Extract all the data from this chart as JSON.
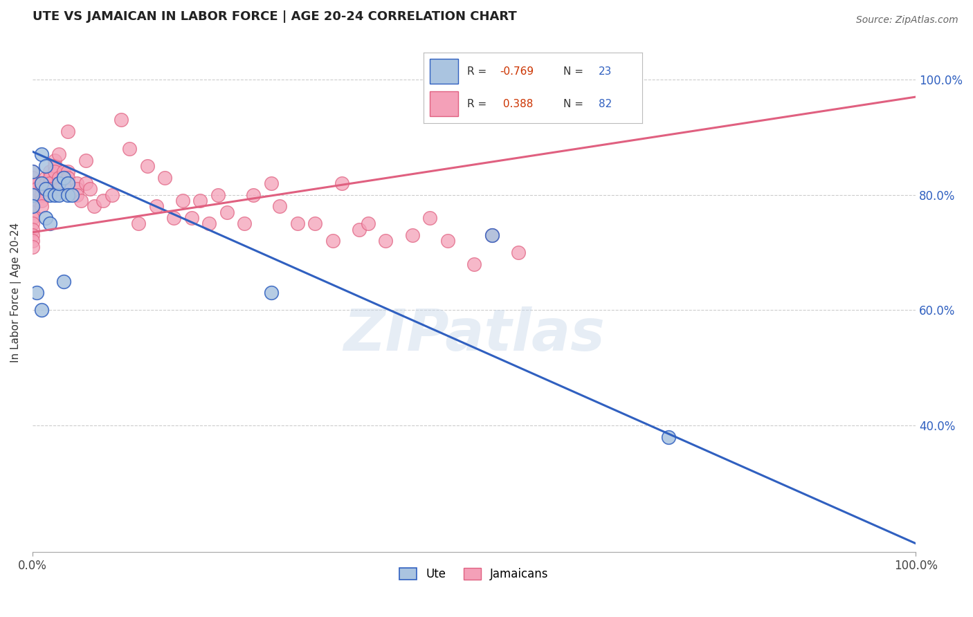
{
  "title": "UTE VS JAMAICAN IN LABOR FORCE | AGE 20-24 CORRELATION CHART",
  "source_text": "Source: ZipAtlas.com",
  "ylabel": "In Labor Force | Age 20-24",
  "xlim": [
    0.0,
    1.0
  ],
  "ylim": [
    0.18,
    1.08
  ],
  "legend_R_ute": "-0.769",
  "legend_N_ute": "23",
  "legend_R_jam": "0.388",
  "legend_N_jam": "82",
  "ute_color": "#aac4e0",
  "jam_color": "#f4a0b8",
  "ute_line_color": "#3060c0",
  "jam_line_color": "#e06080",
  "watermark": "ZIPatlas",
  "ute_x": [
    0.01,
    0.015,
    0.0,
    0.0,
    0.0,
    0.01,
    0.015,
    0.02,
    0.025,
    0.03,
    0.03,
    0.035,
    0.04,
    0.04,
    0.045,
    0.005,
    0.01,
    0.015,
    0.02,
    0.035,
    0.27,
    0.52,
    0.72
  ],
  "ute_y": [
    0.87,
    0.85,
    0.84,
    0.8,
    0.78,
    0.82,
    0.81,
    0.8,
    0.8,
    0.8,
    0.82,
    0.83,
    0.82,
    0.8,
    0.8,
    0.63,
    0.6,
    0.76,
    0.75,
    0.65,
    0.63,
    0.73,
    0.38
  ],
  "jam_x": [
    0.0,
    0.0,
    0.0,
    0.0,
    0.0,
    0.0,
    0.0,
    0.0,
    0.0,
    0.0,
    0.0,
    0.0,
    0.0,
    0.0,
    0.005,
    0.005,
    0.005,
    0.01,
    0.01,
    0.01,
    0.01,
    0.01,
    0.015,
    0.015,
    0.015,
    0.02,
    0.02,
    0.02,
    0.02,
    0.025,
    0.025,
    0.025,
    0.03,
    0.03,
    0.03,
    0.03,
    0.035,
    0.035,
    0.04,
    0.04,
    0.04,
    0.04,
    0.05,
    0.05,
    0.05,
    0.055,
    0.06,
    0.06,
    0.065,
    0.07,
    0.08,
    0.09,
    0.1,
    0.11,
    0.12,
    0.13,
    0.14,
    0.15,
    0.16,
    0.17,
    0.18,
    0.19,
    0.2,
    0.21,
    0.22,
    0.24,
    0.25,
    0.27,
    0.28,
    0.3,
    0.32,
    0.34,
    0.35,
    0.37,
    0.38,
    0.4,
    0.43,
    0.45,
    0.47,
    0.5,
    0.52,
    0.55
  ],
  "jam_y": [
    0.84,
    0.83,
    0.82,
    0.81,
    0.8,
    0.79,
    0.78,
    0.77,
    0.76,
    0.75,
    0.74,
    0.73,
    0.72,
    0.71,
    0.82,
    0.81,
    0.8,
    0.82,
    0.81,
    0.8,
    0.79,
    0.78,
    0.83,
    0.82,
    0.81,
    0.84,
    0.83,
    0.82,
    0.81,
    0.86,
    0.85,
    0.84,
    0.87,
    0.83,
    0.82,
    0.81,
    0.84,
    0.83,
    0.91,
    0.84,
    0.83,
    0.82,
    0.82,
    0.81,
    0.8,
    0.79,
    0.86,
    0.82,
    0.81,
    0.78,
    0.79,
    0.8,
    0.93,
    0.88,
    0.75,
    0.85,
    0.78,
    0.83,
    0.76,
    0.79,
    0.76,
    0.79,
    0.75,
    0.8,
    0.77,
    0.75,
    0.8,
    0.82,
    0.78,
    0.75,
    0.75,
    0.72,
    0.82,
    0.74,
    0.75,
    0.72,
    0.73,
    0.76,
    0.72,
    0.68,
    0.73,
    0.7
  ],
  "ute_line_x": [
    0.0,
    1.0
  ],
  "ute_line_y": [
    0.875,
    0.195
  ],
  "jam_line_x": [
    0.0,
    1.0
  ],
  "jam_line_y": [
    0.735,
    0.97
  ],
  "grid_yticks": [
    0.4,
    0.6,
    0.8,
    1.0
  ],
  "right_ytick_labels": [
    "40.0%",
    "60.0%",
    "80.0%",
    "100.0%"
  ]
}
